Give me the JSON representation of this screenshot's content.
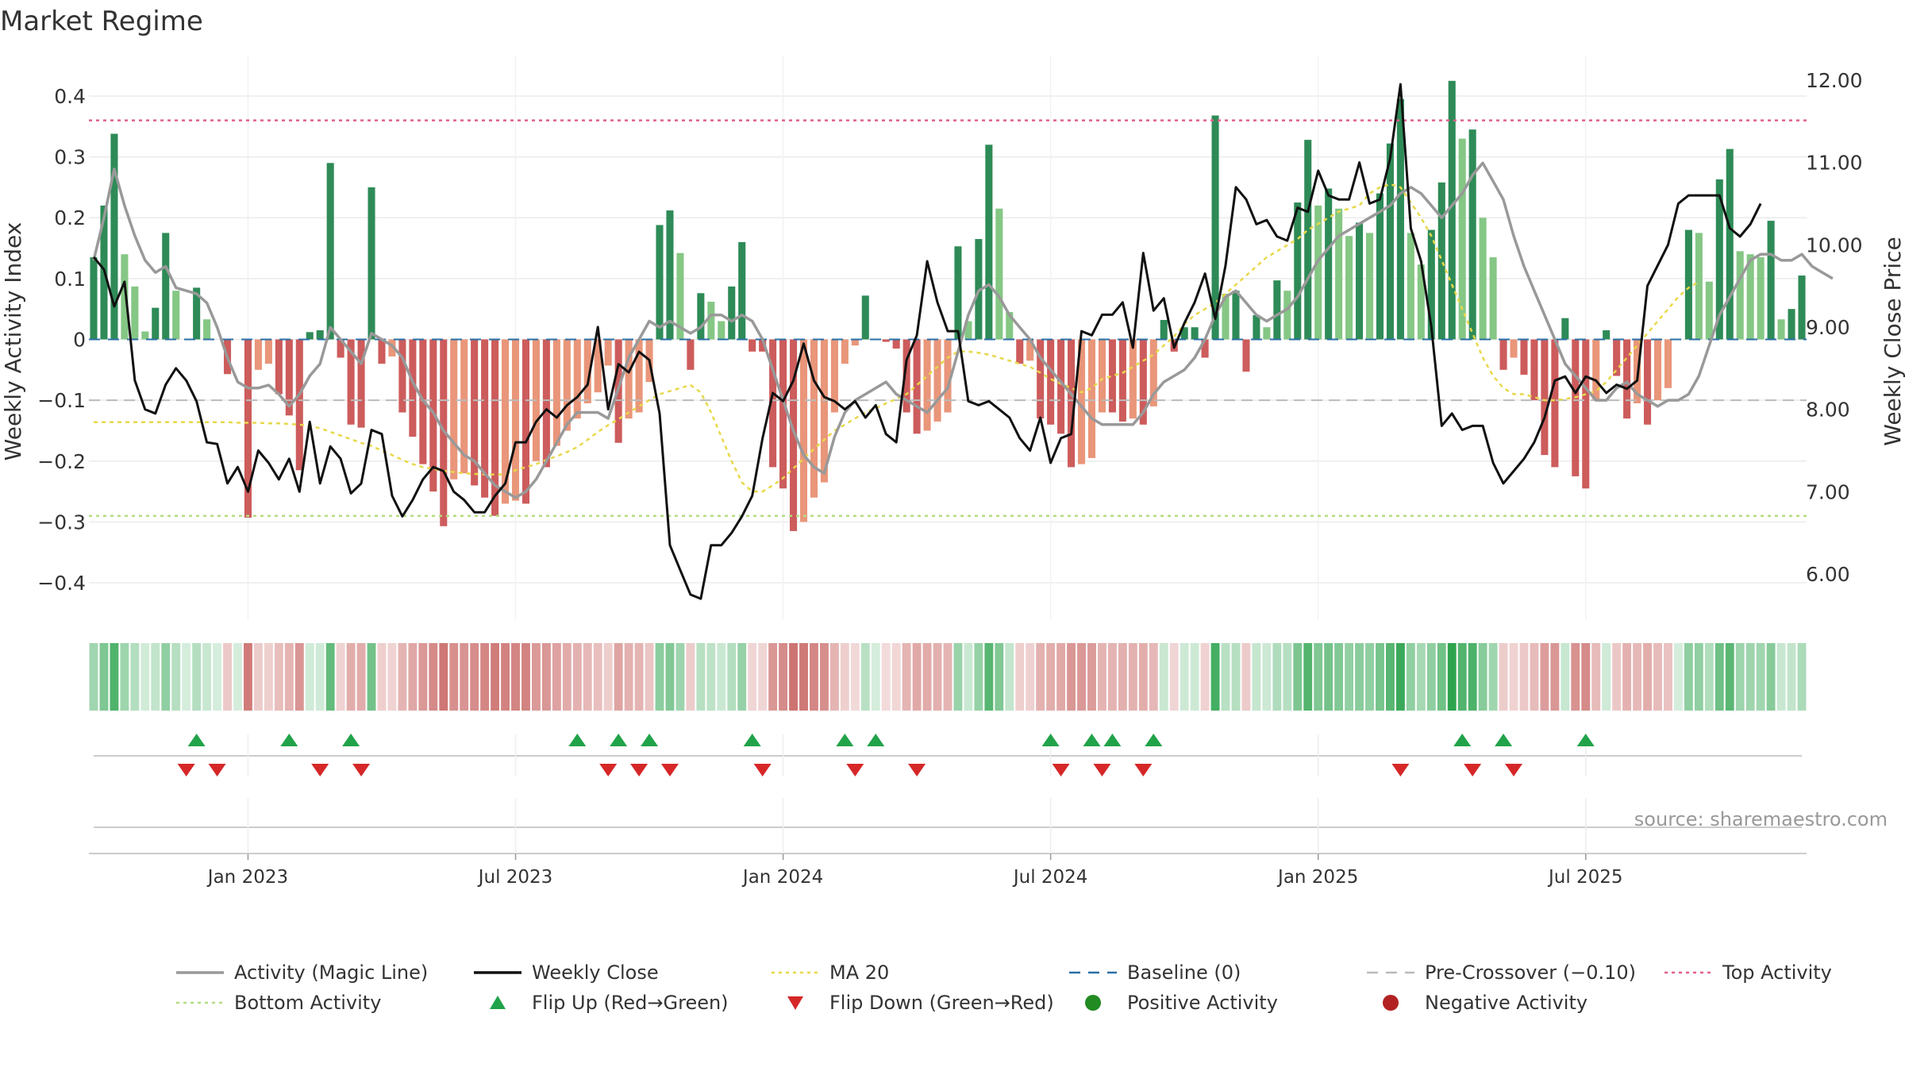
{
  "chart_data": {
    "type": "bar",
    "title": "Market Regime",
    "ylabel_left": "Weekly Activity Index",
    "ylabel_right": "Weekly Close Price",
    "xlabel": "",
    "source": "source: sharemaestro.com",
    "ylim_left": [
      -0.46,
      0.46
    ],
    "ylim_right": [
      5.45,
      12.25
    ],
    "yticks_left": [
      0.4,
      0.3,
      0.2,
      0.1,
      0,
      -0.1,
      -0.2,
      -0.3,
      -0.4
    ],
    "yticks_left_labels": [
      "0.4",
      "0.3",
      "0.2",
      "0.1",
      "0",
      "−0.1",
      "−0.2",
      "−0.3",
      "−0.4"
    ],
    "yticks_right": [
      12,
      11,
      10,
      9,
      8,
      7,
      6
    ],
    "yticks_right_labels": [
      "12.00",
      "11.00",
      "10.00",
      "9.00",
      "8.00",
      "7.00",
      "6.00"
    ],
    "x_ticks": [
      {
        "week": 15,
        "label": "Jan 2023"
      },
      {
        "week": 41,
        "label": "Jul 2023"
      },
      {
        "week": 67,
        "label": "Jan 2024"
      },
      {
        "week": 93,
        "label": "Jul 2024"
      },
      {
        "week": 119,
        "label": "Jan 2025"
      },
      {
        "week": 145,
        "label": "Jul 2025"
      }
    ],
    "lines": {
      "top_activity": 0.36,
      "bottom_activity": -0.29,
      "pre_crossover": -0.1,
      "baseline": 0
    },
    "activity": [
      0.135,
      0.22,
      0.338,
      0.14,
      0.087,
      0.013,
      0.052,
      0.175,
      0.08,
      0,
      0.085,
      0.033,
      0,
      -0.057,
      0,
      -0.293,
      -0.05,
      -0.04,
      -0.09,
      -0.125,
      -0.215,
      0.012,
      0.015,
      0.29,
      -0.03,
      -0.14,
      -0.145,
      0.25,
      -0.04,
      -0.028,
      -0.12,
      -0.16,
      -0.205,
      -0.25,
      -0.307,
      -0.23,
      -0.22,
      -0.24,
      -0.26,
      -0.29,
      -0.27,
      -0.265,
      -0.27,
      -0.2,
      -0.21,
      -0.175,
      -0.15,
      -0.13,
      -0.105,
      -0.087,
      -0.043,
      -0.17,
      -0.13,
      -0.12,
      -0.07,
      0.188,
      0.212,
      0.142,
      -0.05,
      0.076,
      0.062,
      0.03,
      0.087,
      0.16,
      -0.02,
      -0.02,
      -0.21,
      -0.245,
      -0.315,
      -0.3,
      -0.26,
      -0.235,
      -0.12,
      -0.04,
      -0.01,
      0.072,
      0,
      -0.004,
      -0.015,
      -0.12,
      -0.155,
      -0.15,
      -0.135,
      -0.12,
      0.153,
      0.03,
      0.165,
      0.32,
      0.215,
      0.045,
      -0.04,
      -0.035,
      -0.13,
      -0.14,
      -0.155,
      -0.21,
      -0.205,
      -0.195,
      -0.12,
      -0.12,
      -0.135,
      -0.13,
      -0.14,
      -0.11,
      0.032,
      -0.02,
      0.02,
      0.02,
      -0.03,
      0.368,
      0.075,
      0.08,
      -0.053,
      0.04,
      0.02,
      0.097,
      0.08,
      0.225,
      0.328,
      0.22,
      0.248,
      0.215,
      0.17,
      0.192,
      0.175,
      0.24,
      0.322,
      0.395,
      0.175,
      0.123,
      0.18,
      0.258,
      0.425,
      0.33,
      0.345,
      0.2,
      0.135,
      -0.05,
      -0.03,
      -0.058,
      -0.1,
      -0.19,
      -0.21,
      0.035,
      -0.225,
      -0.245,
      -0.1,
      0.015,
      -0.06,
      -0.13,
      -0.105,
      -0.14,
      -0.1,
      -0.08,
      0,
      0.18,
      0.175,
      0.095,
      0.263,
      0.313,
      0.145,
      0.14,
      0.135,
      0.195,
      0.033,
      0.05,
      0.105
    ],
    "close": [
      9.85,
      9.7,
      9.25,
      9.55,
      8.35,
      8.0,
      7.95,
      8.3,
      8.5,
      8.35,
      8.1,
      7.6,
      7.58,
      7.1,
      7.3,
      7.0,
      7.5,
      7.35,
      7.15,
      7.4,
      7.0,
      7.85,
      7.1,
      7.55,
      7.4,
      6.98,
      7.1,
      7.75,
      7.7,
      6.95,
      6.7,
      6.9,
      7.15,
      7.3,
      7.25,
      7.0,
      6.9,
      6.75,
      6.75,
      6.95,
      7.1,
      7.6,
      7.6,
      7.85,
      8.0,
      7.9,
      8.05,
      8.15,
      8.3,
      9.0,
      8.0,
      8.55,
      8.45,
      8.7,
      8.6,
      7.95,
      6.35,
      6.05,
      5.75,
      5.7,
      6.35,
      6.35,
      6.5,
      6.7,
      6.95,
      7.65,
      8.2,
      8.1,
      8.35,
      8.8,
      8.35,
      8.15,
      8.1,
      8.0,
      8.1,
      7.9,
      8.05,
      7.7,
      7.6,
      8.6,
      8.9,
      9.8,
      9.3,
      8.95,
      8.95,
      8.1,
      8.05,
      8.1,
      8.0,
      7.9,
      7.65,
      7.5,
      7.9,
      7.35,
      7.65,
      7.7,
      8.95,
      8.9,
      9.15,
      9.15,
      9.3,
      8.75,
      9.9,
      9.2,
      9.35,
      8.75,
      9.05,
      9.3,
      9.65,
      9.1,
      9.75,
      10.7,
      10.55,
      10.25,
      10.3,
      10.1,
      10.05,
      10.45,
      10.4,
      10.9,
      10.6,
      10.55,
      10.55,
      11.0,
      10.5,
      10.55,
      11.05,
      11.95,
      10.2,
      9.8,
      9.0,
      7.8,
      7.95,
      7.75,
      7.8,
      7.8,
      7.35,
      7.1,
      7.25,
      7.4,
      7.6,
      7.9,
      8.35,
      8.4,
      8.2,
      8.4,
      8.35,
      8.2,
      8.3,
      8.25,
      8.35,
      9.5,
      9.75,
      10.0,
      10.5,
      10.6,
      10.6,
      10.6,
      10.6,
      10.2,
      10.1,
      10.25,
      10.5
    ],
    "magic_line": [
      0.13,
      0.2,
      0.28,
      0.22,
      0.17,
      0.13,
      0.11,
      0.12,
      0.085,
      0.08,
      0.075,
      0.06,
      0.02,
      -0.03,
      -0.07,
      -0.08,
      -0.08,
      -0.075,
      -0.09,
      -0.11,
      -0.09,
      -0.06,
      -0.04,
      0.02,
      0,
      -0.02,
      -0.04,
      0.01,
      0,
      -0.01,
      -0.03,
      -0.07,
      -0.1,
      -0.12,
      -0.15,
      -0.17,
      -0.19,
      -0.2,
      -0.22,
      -0.24,
      -0.25,
      -0.26,
      -0.25,
      -0.23,
      -0.2,
      -0.17,
      -0.14,
      -0.12,
      -0.12,
      -0.12,
      -0.13,
      -0.08,
      -0.03,
      0,
      0.03,
      0.02,
      0.03,
      0.02,
      0.01,
      0.02,
      0.04,
      0.04,
      0.03,
      0.04,
      0.03,
      0,
      -0.05,
      -0.1,
      -0.15,
      -0.19,
      -0.21,
      -0.22,
      -0.16,
      -0.12,
      -0.1,
      -0.09,
      -0.08,
      -0.07,
      -0.09,
      -0.1,
      -0.11,
      -0.12,
      -0.1,
      -0.08,
      -0.02,
      0.04,
      0.08,
      0.09,
      0.07,
      0.04,
      0.02,
      0,
      -0.03,
      -0.05,
      -0.07,
      -0.09,
      -0.11,
      -0.13,
      -0.14,
      -0.14,
      -0.14,
      -0.14,
      -0.12,
      -0.09,
      -0.07,
      -0.06,
      -0.05,
      -0.03,
      0,
      0.04,
      0.07,
      0.08,
      0.06,
      0.04,
      0.03,
      0.04,
      0.05,
      0.07,
      0.1,
      0.13,
      0.15,
      0.17,
      0.18,
      0.19,
      0.2,
      0.21,
      0.22,
      0.24,
      0.25,
      0.24,
      0.22,
      0.2,
      0.22,
      0.24,
      0.27,
      0.29,
      0.26,
      0.23,
      0.17,
      0.12,
      0.08,
      0.04,
      0,
      -0.04,
      -0.06,
      -0.08,
      -0.1,
      -0.1,
      -0.08,
      -0.07,
      -0.09,
      -0.1,
      -0.11,
      -0.1,
      -0.1,
      -0.09,
      -0.06,
      -0.01,
      0.04,
      0.07,
      0.1,
      0.13,
      0.14,
      0.14,
      0.13,
      0.13,
      0.14,
      0.12,
      0.11,
      0.1
    ],
    "ma20": [
      -0.136,
      -0.136,
      -0.136,
      -0.136,
      -0.136,
      -0.136,
      -0.136,
      -0.136,
      -0.136,
      -0.136,
      -0.136,
      -0.136,
      -0.136,
      -0.136,
      -0.137,
      -0.137,
      -0.137,
      -0.138,
      -0.138,
      -0.139,
      -0.14,
      -0.142,
      -0.146,
      -0.152,
      -0.158,
      -0.164,
      -0.17,
      -0.175,
      -0.183,
      -0.19,
      -0.198,
      -0.205,
      -0.21,
      -0.213,
      -0.216,
      -0.218,
      -0.22,
      -0.221,
      -0.222,
      -0.222,
      -0.222,
      -0.215,
      -0.21,
      -0.205,
      -0.198,
      -0.192,
      -0.185,
      -0.177,
      -0.165,
      -0.152,
      -0.141,
      -0.131,
      -0.12,
      -0.11,
      -0.1,
      -0.09,
      -0.085,
      -0.08,
      -0.075,
      -0.087,
      -0.12,
      -0.16,
      -0.2,
      -0.235,
      -0.25,
      -0.25,
      -0.24,
      -0.228,
      -0.212,
      -0.196,
      -0.18,
      -0.165,
      -0.15,
      -0.14,
      -0.13,
      -0.12,
      -0.113,
      -0.105,
      -0.098,
      -0.09,
      -0.075,
      -0.06,
      -0.045,
      -0.03,
      -0.02,
      -0.02,
      -0.022,
      -0.025,
      -0.03,
      -0.035,
      -0.04,
      -0.045,
      -0.055,
      -0.065,
      -0.073,
      -0.08,
      -0.087,
      -0.08,
      -0.065,
      -0.06,
      -0.055,
      -0.045,
      -0.035,
      -0.025,
      -0.01,
      0.005,
      0.025,
      0.04,
      0.05,
      0.06,
      0.075,
      0.09,
      0.105,
      0.12,
      0.135,
      0.145,
      0.155,
      0.165,
      0.18,
      0.19,
      0.2,
      0.21,
      0.215,
      0.22,
      0.24,
      0.25,
      0.255,
      0.25,
      0.225,
      0.2,
      0.17,
      0.13,
      0.09,
      0.05,
      0.01,
      -0.03,
      -0.06,
      -0.08,
      -0.09,
      -0.09,
      -0.095,
      -0.1,
      -0.1,
      -0.098,
      -0.095,
      -0.09,
      -0.085,
      -0.07,
      -0.05,
      -0.03,
      -0.01,
      0.01,
      0.03,
      0.05,
      0.07,
      0.085,
      0.095
    ],
    "flip_up_weeks": [
      10,
      19,
      25,
      47,
      51,
      54,
      64,
      73,
      76,
      93,
      97,
      99,
      103,
      133,
      137,
      145
    ],
    "flip_down_weeks": [
      9,
      12,
      22,
      26,
      50,
      53,
      56,
      65,
      74,
      80,
      94,
      98,
      102,
      127,
      134,
      138
    ],
    "legend": [
      {
        "label": "Activity (Magic Line)",
        "kind": "line",
        "color": "#999999"
      },
      {
        "label": "Weekly Close",
        "kind": "line",
        "color": "#111111"
      },
      {
        "label": "MA 20",
        "kind": "dotted",
        "color": "#e8d84a"
      },
      {
        "label": "Baseline (0)",
        "kind": "dashed",
        "color": "#2b6fa6"
      },
      {
        "label": "Pre-Crossover (−0.10)",
        "kind": "dashed",
        "color": "#bbbbbb"
      },
      {
        "label": "Top Activity",
        "kind": "dotted",
        "color": "#e06090"
      },
      {
        "label": "Bottom Activity",
        "kind": "dotted",
        "color": "#b5dc80"
      },
      {
        "label": "Flip Up (Red→Green)",
        "kind": "tri-up",
        "color": "#21a34a"
      },
      {
        "label": "Flip Down (Green→Red)",
        "kind": "tri-down",
        "color": "#d62728"
      },
      {
        "label": "Positive Activity",
        "kind": "dot",
        "color": "#228b22"
      },
      {
        "label": "Negative Activity",
        "kind": "dot",
        "color": "#b22222"
      }
    ],
    "colors": {
      "pos_dark": "#2e8b57",
      "pos_light": "#85c785",
      "neg_dark": "#cd5c5c",
      "neg_light": "#e9967a",
      "close": "#111111",
      "magic": "#999999",
      "ma20": "#e8d84a",
      "top": "#e06090",
      "bottom": "#b5dc80",
      "pre": "#bbbbbb",
      "baseline": "#2b6fa6"
    }
  }
}
